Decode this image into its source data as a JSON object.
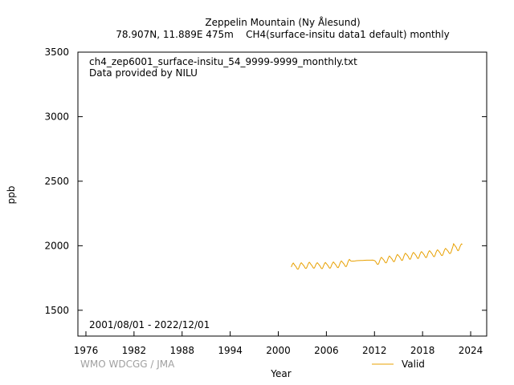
{
  "chart_data": {
    "type": "line",
    "title": "Zeppelin Mountain (Ny Ålesund)",
    "subtitle": "78.907N, 11.889E 475m    CH4(surface-insitu data1 default) monthly",
    "file_label": "ch4_zep6001_surface-insitu_54_9999-9999_monthly.txt",
    "provider_label": "Data provided by NILU",
    "date_range_label": "2001/08/01 - 2022/12/01",
    "credit": "WMO WDCGG / JMA",
    "xlabel": "Year",
    "ylabel": "ppb",
    "xlim": [
      1975,
      2026
    ],
    "ylim": [
      1300,
      3500
    ],
    "xticks": [
      1976,
      1982,
      1988,
      1994,
      2000,
      2006,
      2012,
      2018,
      2024
    ],
    "yticks": [
      1500,
      2000,
      2500,
      3000,
      3500
    ],
    "legend_position": "bottom-right",
    "grid": false,
    "series": [
      {
        "name": "Valid",
        "color": "#e8a000",
        "points": [
          [
            2001.62,
            1835
          ],
          [
            2001.71,
            1850
          ],
          [
            2001.79,
            1860
          ],
          [
            2001.87,
            1866
          ],
          [
            2001.96,
            1858
          ],
          [
            2002.04,
            1850
          ],
          [
            2002.12,
            1845
          ],
          [
            2002.21,
            1838
          ],
          [
            2002.29,
            1828
          ],
          [
            2002.37,
            1820
          ],
          [
            2002.46,
            1818
          ],
          [
            2002.54,
            1825
          ],
          [
            2002.62,
            1838
          ],
          [
            2002.71,
            1852
          ],
          [
            2002.79,
            1862
          ],
          [
            2002.87,
            1868
          ],
          [
            2002.96,
            1862
          ],
          [
            2003.04,
            1856
          ],
          [
            2003.12,
            1850
          ],
          [
            2003.21,
            1843
          ],
          [
            2003.29,
            1834
          ],
          [
            2003.37,
            1826
          ],
          [
            2003.46,
            1824
          ],
          [
            2003.54,
            1830
          ],
          [
            2003.62,
            1842
          ],
          [
            2003.71,
            1856
          ],
          [
            2003.79,
            1866
          ],
          [
            2003.87,
            1872
          ],
          [
            2003.96,
            1866
          ],
          [
            2004.04,
            1858
          ],
          [
            2004.12,
            1852
          ],
          [
            2004.21,
            1845
          ],
          [
            2004.29,
            1836
          ],
          [
            2004.37,
            1828
          ],
          [
            2004.46,
            1826
          ],
          [
            2004.54,
            1832
          ],
          [
            2004.62,
            1844
          ],
          [
            2004.71,
            1856
          ],
          [
            2004.79,
            1864
          ],
          [
            2004.87,
            1868
          ],
          [
            2004.96,
            1862
          ],
          [
            2005.04,
            1856
          ],
          [
            2005.12,
            1850
          ],
          [
            2005.21,
            1843
          ],
          [
            2005.29,
            1833
          ],
          [
            2005.37,
            1825
          ],
          [
            2005.46,
            1822
          ],
          [
            2005.54,
            1828
          ],
          [
            2005.62,
            1840
          ],
          [
            2005.71,
            1854
          ],
          [
            2005.79,
            1864
          ],
          [
            2005.87,
            1870
          ],
          [
            2005.96,
            1864
          ],
          [
            2006.04,
            1858
          ],
          [
            2006.12,
            1852
          ],
          [
            2006.21,
            1845
          ],
          [
            2006.29,
            1836
          ],
          [
            2006.37,
            1828
          ],
          [
            2006.46,
            1826
          ],
          [
            2006.54,
            1832
          ],
          [
            2006.62,
            1845
          ],
          [
            2006.71,
            1858
          ],
          [
            2006.79,
            1868
          ],
          [
            2006.87,
            1874
          ],
          [
            2006.96,
            1868
          ],
          [
            2007.04,
            1862
          ],
          [
            2007.12,
            1856
          ],
          [
            2007.21,
            1849
          ],
          [
            2007.29,
            1840
          ],
          [
            2007.37,
            1832
          ],
          [
            2007.46,
            1830
          ],
          [
            2007.54,
            1837
          ],
          [
            2007.62,
            1850
          ],
          [
            2007.71,
            1865
          ],
          [
            2007.79,
            1876
          ],
          [
            2007.87,
            1882
          ],
          [
            2007.96,
            1876
          ],
          [
            2008.04,
            1870
          ],
          [
            2008.12,
            1864
          ],
          [
            2008.21,
            1857
          ],
          [
            2008.29,
            1848
          ],
          [
            2008.37,
            1840
          ],
          [
            2008.46,
            1838
          ],
          [
            2008.54,
            1845
          ],
          [
            2008.62,
            1860
          ],
          [
            2008.71,
            1876
          ],
          [
            2008.79,
            1887
          ],
          [
            2008.87,
            1894
          ],
          [
            2008.96,
            1888
          ],
          [
            2009.04,
            1882
          ],
          [
            2009.21,
            1880
          ],
          [
            2009.54,
            1882
          ],
          [
            2009.79,
            1884
          ],
          [
            2010.04,
            1885
          ],
          [
            2010.29,
            1886
          ],
          [
            2010.54,
            1886
          ],
          [
            2010.79,
            1887
          ],
          [
            2011.04,
            1888
          ],
          [
            2011.29,
            1888
          ],
          [
            2011.54,
            1888
          ],
          [
            2011.79,
            1889
          ],
          [
            2012.04,
            1884
          ],
          [
            2012.12,
            1878
          ],
          [
            2012.21,
            1871
          ],
          [
            2012.29,
            1862
          ],
          [
            2012.37,
            1856
          ],
          [
            2012.46,
            1856
          ],
          [
            2012.54,
            1864
          ],
          [
            2012.62,
            1878
          ],
          [
            2012.71,
            1893
          ],
          [
            2012.79,
            1904
          ],
          [
            2012.87,
            1910
          ],
          [
            2012.96,
            1904
          ],
          [
            2013.04,
            1898
          ],
          [
            2013.12,
            1892
          ],
          [
            2013.21,
            1885
          ],
          [
            2013.29,
            1876
          ],
          [
            2013.37,
            1868
          ],
          [
            2013.46,
            1867
          ],
          [
            2013.54,
            1874
          ],
          [
            2013.62,
            1888
          ],
          [
            2013.71,
            1903
          ],
          [
            2013.79,
            1914
          ],
          [
            2013.87,
            1920
          ],
          [
            2013.96,
            1914
          ],
          [
            2014.04,
            1908
          ],
          [
            2014.12,
            1902
          ],
          [
            2014.21,
            1895
          ],
          [
            2014.29,
            1886
          ],
          [
            2014.37,
            1878
          ],
          [
            2014.46,
            1877
          ],
          [
            2014.54,
            1885
          ],
          [
            2014.62,
            1899
          ],
          [
            2014.71,
            1915
          ],
          [
            2014.79,
            1926
          ],
          [
            2014.87,
            1932
          ],
          [
            2014.96,
            1926
          ],
          [
            2015.04,
            1920
          ],
          [
            2015.12,
            1914
          ],
          [
            2015.21,
            1906
          ],
          [
            2015.29,
            1897
          ],
          [
            2015.37,
            1888
          ],
          [
            2015.46,
            1886
          ],
          [
            2015.54,
            1894
          ],
          [
            2015.62,
            1909
          ],
          [
            2015.71,
            1925
          ],
          [
            2015.79,
            1936
          ],
          [
            2015.87,
            1942
          ],
          [
            2015.96,
            1936
          ],
          [
            2016.04,
            1930
          ],
          [
            2016.12,
            1924
          ],
          [
            2016.21,
            1916
          ],
          [
            2016.29,
            1906
          ],
          [
            2016.37,
            1897
          ],
          [
            2016.46,
            1895
          ],
          [
            2016.54,
            1903
          ],
          [
            2016.62,
            1918
          ],
          [
            2016.71,
            1933
          ],
          [
            2016.79,
            1943
          ],
          [
            2016.87,
            1948
          ],
          [
            2016.96,
            1942
          ],
          [
            2017.04,
            1936
          ],
          [
            2017.12,
            1930
          ],
          [
            2017.21,
            1922
          ],
          [
            2017.29,
            1912
          ],
          [
            2017.37,
            1903
          ],
          [
            2017.46,
            1901
          ],
          [
            2017.54,
            1909
          ],
          [
            2017.62,
            1924
          ],
          [
            2017.71,
            1939
          ],
          [
            2017.79,
            1949
          ],
          [
            2017.87,
            1954
          ],
          [
            2017.96,
            1948
          ],
          [
            2018.04,
            1942
          ],
          [
            2018.12,
            1936
          ],
          [
            2018.21,
            1928
          ],
          [
            2018.29,
            1918
          ],
          [
            2018.37,
            1910
          ],
          [
            2018.46,
            1908
          ],
          [
            2018.54,
            1916
          ],
          [
            2018.62,
            1931
          ],
          [
            2018.71,
            1946
          ],
          [
            2018.79,
            1956
          ],
          [
            2018.87,
            1961
          ],
          [
            2018.96,
            1955
          ],
          [
            2019.04,
            1949
          ],
          [
            2019.12,
            1943
          ],
          [
            2019.21,
            1935
          ],
          [
            2019.29,
            1925
          ],
          [
            2019.37,
            1917
          ],
          [
            2019.46,
            1915
          ],
          [
            2019.54,
            1923
          ],
          [
            2019.62,
            1938
          ],
          [
            2019.71,
            1953
          ],
          [
            2019.79,
            1963
          ],
          [
            2019.87,
            1968
          ],
          [
            2019.96,
            1962
          ],
          [
            2020.04,
            1956
          ],
          [
            2020.12,
            1950
          ],
          [
            2020.21,
            1942
          ],
          [
            2020.29,
            1932
          ],
          [
            2020.37,
            1925
          ],
          [
            2020.46,
            1924
          ],
          [
            2020.54,
            1932
          ],
          [
            2020.62,
            1947
          ],
          [
            2020.71,
            1962
          ],
          [
            2020.79,
            1973
          ],
          [
            2020.87,
            1979
          ],
          [
            2020.96,
            1974
          ],
          [
            2021.04,
            1968
          ],
          [
            2021.12,
            1962
          ],
          [
            2021.21,
            1955
          ],
          [
            2021.29,
            1946
          ],
          [
            2021.37,
            1940
          ],
          [
            2021.46,
            1940
          ],
          [
            2021.54,
            1948
          ],
          [
            2021.62,
            1963
          ],
          [
            2021.71,
            1980
          ],
          [
            2021.79,
            1995
          ],
          [
            2021.87,
            2015
          ],
          [
            2021.96,
            2008
          ],
          [
            2022.04,
            2000
          ],
          [
            2022.12,
            1994
          ],
          [
            2022.21,
            1986
          ],
          [
            2022.29,
            1974
          ],
          [
            2022.37,
            1964
          ],
          [
            2022.46,
            1962
          ],
          [
            2022.54,
            1970
          ],
          [
            2022.62,
            1985
          ],
          [
            2022.71,
            1998
          ],
          [
            2022.79,
            2008
          ],
          [
            2022.87,
            2014
          ],
          [
            2022.96,
            2010
          ]
        ]
      }
    ]
  }
}
